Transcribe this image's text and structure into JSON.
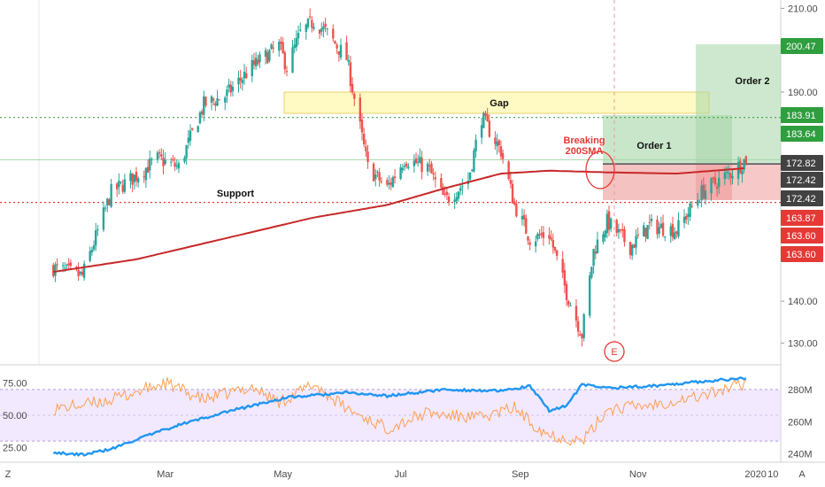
{
  "colors": {
    "up": "#26a69a",
    "down": "#ef5350",
    "sma": "#c62828",
    "support_line": "#e53935",
    "gap_line": "#43a047",
    "gap_fill": "#fff9c4",
    "order_green": "#66bb6a",
    "order_red": "#ef5350",
    "rsi_band": "#e8d7ff",
    "rsi_line": "#ff9e4f",
    "volume_line": "#2196f3"
  },
  "chart_data": [
    {
      "type": "candlestick",
      "title": "",
      "y_ticks": [
        "210.00",
        "190.00",
        "140.00",
        "130.00"
      ],
      "ylim": [
        125,
        212
      ],
      "x_ticks": [
        "Mar",
        "May",
        "Jul",
        "Sep",
        "Nov",
        "2020",
        "10"
      ],
      "sma_label": "200SMA",
      "price_tags": [
        {
          "text": "200.47",
          "color": "green"
        },
        {
          "text": "183.91",
          "color": "green"
        },
        {
          "text": "183.64",
          "color": "green"
        },
        {
          "text": "172.82",
          "color": "dark"
        },
        {
          "text": "172.42",
          "color": "dark"
        },
        {
          "text": "172.42",
          "color": "dark"
        },
        {
          "text": "163.87",
          "color": "red"
        },
        {
          "text": "163.60",
          "color": "red"
        },
        {
          "text": "163.60",
          "color": "red"
        }
      ],
      "annotations": {
        "gap": "Gap",
        "support": "Support",
        "order1": "Order 1",
        "order2": "Order 2",
        "breaking_line1": "Breaking",
        "breaking_line2": "200SMA",
        "event": "E"
      },
      "levels": {
        "gap_top": 189.8,
        "gap_bottom": 183.91,
        "support": 163.6,
        "entry": 172.82,
        "target1": 183.64,
        "target2": 200.47
      },
      "anchors": [
        [
          "2019-01-02",
          148
        ],
        [
          "2019-01-17",
          146
        ],
        [
          "2019-02-01",
          166
        ],
        [
          "2019-02-14",
          170
        ],
        [
          "2019-02-25",
          174
        ],
        [
          "2019-03-08",
          172
        ],
        [
          "2019-03-21",
          187
        ],
        [
          "2019-04-01",
          189
        ],
        [
          "2019-04-15",
          196
        ],
        [
          "2019-04-29",
          201
        ],
        [
          "2019-05-03",
          196
        ],
        [
          "2019-05-10",
          204
        ],
        [
          "2019-05-17",
          207
        ],
        [
          "2019-05-24",
          204
        ],
        [
          "2019-06-03",
          198
        ],
        [
          "2019-06-14",
          172
        ],
        [
          "2019-06-24",
          167
        ],
        [
          "2019-07-03",
          174
        ],
        [
          "2019-07-15",
          172
        ],
        [
          "2019-07-24",
          164
        ],
        [
          "2019-08-05",
          169
        ],
        [
          "2019-08-12",
          184
        ],
        [
          "2019-08-22",
          176
        ],
        [
          "2019-08-29",
          163
        ],
        [
          "2019-09-06",
          155
        ],
        [
          "2019-09-16",
          156
        ],
        [
          "2019-09-25",
          142
        ],
        [
          "2019-10-03",
          132
        ],
        [
          "2019-10-09",
          152
        ],
        [
          "2019-10-16",
          159
        ],
        [
          "2019-10-28",
          153
        ],
        [
          "2019-11-07",
          158
        ],
        [
          "2019-11-21",
          157
        ],
        [
          "2019-12-04",
          166
        ],
        [
          "2019-12-20",
          171
        ],
        [
          "2019-12-27",
          174
        ]
      ],
      "sma_anchors": [
        [
          "2019-01-02",
          147
        ],
        [
          "2019-02-14",
          150
        ],
        [
          "2019-04-01",
          155
        ],
        [
          "2019-05-17",
          160
        ],
        [
          "2019-06-24",
          163
        ],
        [
          "2019-07-24",
          167
        ],
        [
          "2019-08-22",
          170.5
        ],
        [
          "2019-09-16",
          171.2
        ],
        [
          "2019-10-16",
          170.8
        ],
        [
          "2019-11-21",
          170.5
        ],
        [
          "2019-12-27",
          171.8
        ]
      ]
    },
    {
      "type": "line",
      "title": "",
      "left_ticks": [
        "75.00",
        "50.00",
        "25.00"
      ],
      "right_ticks": [
        "280M",
        "260M",
        "240M"
      ],
      "rsi_band": [
        30,
        70
      ],
      "rsi_anchors": [
        [
          "2019-01-02",
          55
        ],
        [
          "2019-01-17",
          58
        ],
        [
          "2019-02-01",
          62
        ],
        [
          "2019-02-14",
          68
        ],
        [
          "2019-03-01",
          75
        ],
        [
          "2019-03-21",
          62
        ],
        [
          "2019-04-15",
          72
        ],
        [
          "2019-04-29",
          60
        ],
        [
          "2019-05-17",
          74
        ],
        [
          "2019-06-03",
          55
        ],
        [
          "2019-06-24",
          40
        ],
        [
          "2019-07-15",
          52
        ],
        [
          "2019-07-24",
          50
        ],
        [
          "2019-08-12",
          48
        ],
        [
          "2019-08-29",
          56
        ],
        [
          "2019-09-06",
          45
        ],
        [
          "2019-09-16",
          35
        ],
        [
          "2019-09-25",
          32
        ],
        [
          "2019-10-03",
          30
        ],
        [
          "2019-10-09",
          40
        ],
        [
          "2019-10-16",
          55
        ],
        [
          "2019-11-07",
          58
        ],
        [
          "2019-12-04",
          65
        ],
        [
          "2019-12-27",
          75
        ]
      ],
      "volume_anchors": [
        [
          "2019-01-02",
          241
        ],
        [
          "2019-01-17",
          239.5
        ],
        [
          "2019-02-01",
          243
        ],
        [
          "2019-02-14",
          249
        ],
        [
          "2019-03-08",
          258
        ],
        [
          "2019-04-01",
          266
        ],
        [
          "2019-05-03",
          275
        ],
        [
          "2019-06-03",
          278
        ],
        [
          "2019-06-24",
          276
        ],
        [
          "2019-07-24",
          280
        ],
        [
          "2019-08-22",
          279
        ],
        [
          "2019-09-06",
          282
        ],
        [
          "2019-09-16",
          267
        ],
        [
          "2019-09-25",
          270
        ],
        [
          "2019-10-03",
          283
        ],
        [
          "2019-10-16",
          281
        ],
        [
          "2019-11-07",
          282
        ],
        [
          "2019-12-04",
          285
        ],
        [
          "2019-12-27",
          287
        ]
      ]
    }
  ],
  "footer": {
    "left_button": "Z",
    "right_button": "A"
  }
}
